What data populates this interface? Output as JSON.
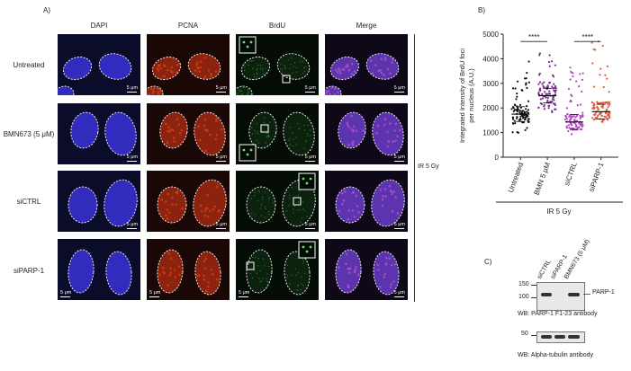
{
  "panel_a": {
    "label": "A)",
    "columns": [
      "DAPI",
      "PCNA",
      "BrdU",
      "Merge"
    ],
    "rows": [
      "Untreated",
      "BMN673 (5 μM)",
      "siCTRL",
      "siPARP-1"
    ],
    "scale_bar": "5 μm",
    "treatment": "IR 5 Gy"
  },
  "panel_b": {
    "label": "B)",
    "significance": [
      "****",
      "****"
    ],
    "group_label": "IR 5 Gy"
  },
  "chart_data": {
    "type": "scatter",
    "ylabel": "Integrated Intensity of BrdU foci per nucleus (A.U.)",
    "ylim": [
      0,
      5000
    ],
    "yticks": [
      0,
      1000,
      2000,
      3000,
      4000,
      5000
    ],
    "categories": [
      "Untreated",
      "BMN 5 μM",
      "siCTRL",
      "siPARP-1"
    ],
    "colors": [
      "#111111",
      "#7a2a8e",
      "#b048c0",
      "#e8593a"
    ],
    "means": [
      1750,
      2500,
      1430,
      1850
    ],
    "ranges": [
      [
        900,
        3900
      ],
      [
        1700,
        4400
      ],
      [
        900,
        3900
      ],
      [
        1000,
        4800
      ]
    ]
  },
  "panel_c": {
    "label": "C)",
    "lanes": [
      "siCTRL",
      "siPARP-1",
      "BMN673 (5 μM)"
    ],
    "blot1_markers": [
      "150",
      "100"
    ],
    "blot1_band": "PARP-1",
    "blot1_caption": "WB: PARP-1 F1-23 antibody",
    "blot2_markers": [
      "50"
    ],
    "blot2_caption": "WB: Alpha-tubulin antibody"
  }
}
